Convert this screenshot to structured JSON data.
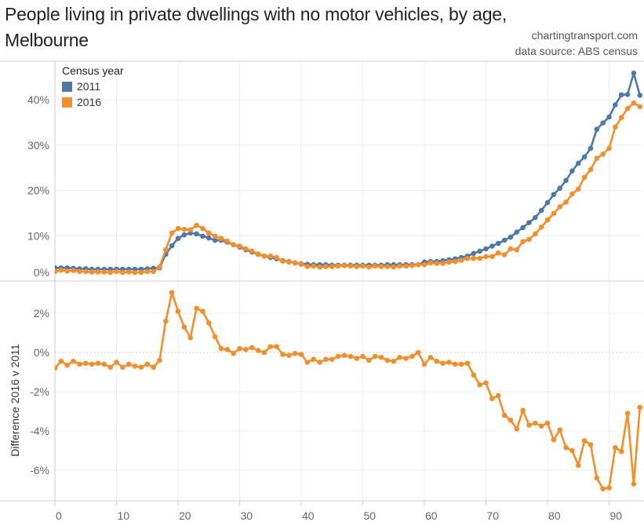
{
  "header": {
    "title_line1": "People living in private dwellings with no motor vehicles, by age,",
    "title_line2": "Melbourne",
    "credit": "chartingtransport.com",
    "source": "data source: ABS census"
  },
  "legend": {
    "title": "Census year",
    "items": [
      {
        "label": "2011",
        "color": "#4e79a7"
      },
      {
        "label": "2016",
        "color": "#f28e2b"
      }
    ]
  },
  "chart_data": [
    {
      "type": "line",
      "title": "People living in private dwellings with no motor vehicles, by age, Melbourne",
      "xlabel": "",
      "ylabel": "",
      "x": [
        0,
        1,
        2,
        3,
        4,
        5,
        6,
        7,
        8,
        9,
        10,
        11,
        12,
        13,
        14,
        15,
        16,
        17,
        18,
        19,
        20,
        21,
        22,
        23,
        24,
        25,
        26,
        27,
        28,
        29,
        30,
        31,
        32,
        33,
        34,
        35,
        36,
        37,
        38,
        39,
        40,
        41,
        42,
        43,
        44,
        45,
        46,
        47,
        48,
        49,
        50,
        51,
        52,
        53,
        54,
        55,
        56,
        57,
        58,
        59,
        60,
        61,
        62,
        63,
        64,
        65,
        66,
        67,
        68,
        69,
        70,
        71,
        72,
        73,
        74,
        75,
        76,
        77,
        78,
        79,
        80,
        81,
        82,
        83,
        84,
        85,
        86,
        87,
        88,
        89,
        90,
        91,
        92,
        93,
        94,
        95
      ],
      "xlim": [
        0,
        95
      ],
      "ylim": [
        0,
        48
      ],
      "yticks": [
        0,
        10,
        20,
        30,
        40
      ],
      "ytick_labels": [
        "0%",
        "10%",
        "20%",
        "30%",
        "40%"
      ],
      "grid": true,
      "legend": "top-left",
      "series": [
        {
          "name": "2011",
          "color": "#4e79a7",
          "values": [
            2.9,
            2.9,
            2.9,
            2.8,
            2.7,
            2.7,
            2.6,
            2.6,
            2.6,
            2.6,
            2.6,
            2.6,
            2.6,
            2.6,
            2.6,
            2.7,
            2.8,
            2.9,
            5.9,
            7.8,
            9.4,
            10.2,
            10.6,
            10.4,
            9.9,
            9.5,
            9.0,
            9.0,
            8.6,
            8.0,
            7.5,
            6.9,
            6.4,
            5.9,
            5.5,
            5.2,
            4.9,
            4.5,
            4.3,
            4.0,
            3.8,
            3.7,
            3.6,
            3.6,
            3.6,
            3.5,
            3.5,
            3.5,
            3.5,
            3.5,
            3.5,
            3.5,
            3.5,
            3.5,
            3.6,
            3.6,
            3.6,
            3.6,
            3.6,
            3.6,
            4.2,
            4.3,
            4.3,
            4.5,
            4.7,
            4.9,
            5.2,
            5.5,
            6.1,
            6.6,
            7.1,
            7.7,
            8.3,
            9.0,
            9.7,
            10.8,
            11.8,
            12.9,
            14.0,
            15.6,
            17.3,
            19.1,
            20.5,
            22.2,
            24.3,
            26.0,
            27.4,
            29.3,
            33.5,
            34.9,
            36.2,
            38.9,
            41.1,
            41.2,
            45.9,
            41.0
          ]
        },
        {
          "name": "2016",
          "color": "#f28e2b",
          "values": [
            2.1,
            2.4,
            2.2,
            2.3,
            2.1,
            2.1,
            2.0,
            2.0,
            2.0,
            1.9,
            2.1,
            1.9,
            2.0,
            1.9,
            1.9,
            2.1,
            2.1,
            3.1,
            6.9,
            10.6,
            11.6,
            11.4,
            11.3,
            12.3,
            11.6,
            10.6,
            9.9,
            9.4,
            8.8,
            8.0,
            7.7,
            7.1,
            6.6,
            6.0,
            5.5,
            5.5,
            5.2,
            4.4,
            4.2,
            4.0,
            3.7,
            3.2,
            3.3,
            3.1,
            3.2,
            3.2,
            3.3,
            3.4,
            3.3,
            3.2,
            3.3,
            3.1,
            3.3,
            3.2,
            3.2,
            3.1,
            3.3,
            3.3,
            3.4,
            3.6,
            3.6,
            4.0,
            3.9,
            3.9,
            4.2,
            4.3,
            4.6,
            5.0,
            5.0,
            5.0,
            5.4,
            5.4,
            6.2,
            5.8,
            7.1,
            6.9,
            8.7,
            9.2,
            10.4,
            11.9,
            13.5,
            14.9,
            16.4,
            17.4,
            19.2,
            20.3,
            22.9,
            24.6,
            27.1,
            28.0,
            29.3,
            34.0,
            36.1,
            38.1,
            39.3,
            38.5
          ]
        }
      ]
    },
    {
      "type": "line",
      "title": "",
      "xlabel": "",
      "ylabel": "Difference 2016 v 2011",
      "x": [
        0,
        1,
        2,
        3,
        4,
        5,
        6,
        7,
        8,
        9,
        10,
        11,
        12,
        13,
        14,
        15,
        16,
        17,
        18,
        19,
        20,
        21,
        22,
        23,
        24,
        25,
        26,
        27,
        28,
        29,
        30,
        31,
        32,
        33,
        34,
        35,
        36,
        37,
        38,
        39,
        40,
        41,
        42,
        43,
        44,
        45,
        46,
        47,
        48,
        49,
        50,
        51,
        52,
        53,
        54,
        55,
        56,
        57,
        58,
        59,
        60,
        61,
        62,
        63,
        64,
        65,
        66,
        67,
        68,
        69,
        70,
        71,
        72,
        73,
        74,
        75,
        76,
        77,
        78,
        79,
        80,
        81,
        82,
        83,
        84,
        85,
        86,
        87,
        88,
        89,
        90,
        91,
        92,
        93,
        94,
        95
      ],
      "xlim": [
        0,
        95
      ],
      "ylim": [
        -7.5,
        3.5
      ],
      "yticks": [
        -6,
        -4,
        -2,
        0,
        2
      ],
      "ytick_labels": [
        "-6%",
        "-4%",
        "-2%",
        "0%",
        "2%"
      ],
      "xticks": [
        0,
        10,
        20,
        30,
        40,
        50,
        60,
        70,
        80,
        90
      ],
      "xtick_labels": [
        "0",
        "10",
        "20",
        "30",
        "40",
        "50",
        "60",
        "70",
        "80",
        "90"
      ],
      "grid": true,
      "zero_line": "dotted",
      "series": [
        {
          "name": "2016",
          "color": "#f28e2b",
          "values": [
            -0.8,
            -0.45,
            -0.65,
            -0.45,
            -0.6,
            -0.55,
            -0.6,
            -0.55,
            -0.6,
            -0.75,
            -0.5,
            -0.75,
            -0.6,
            -0.7,
            -0.75,
            -0.6,
            -0.75,
            -0.4,
            1.6,
            3.05,
            2.1,
            1.3,
            0.75,
            2.25,
            2.1,
            1.5,
            0.8,
            0.2,
            0.15,
            -0.05,
            0.2,
            0.15,
            0.25,
            0.1,
            0.0,
            0.3,
            0.3,
            -0.1,
            -0.15,
            -0.05,
            -0.1,
            -0.5,
            -0.35,
            -0.5,
            -0.35,
            -0.35,
            -0.2,
            -0.15,
            -0.2,
            -0.3,
            -0.2,
            -0.4,
            -0.2,
            -0.25,
            -0.4,
            -0.45,
            -0.25,
            -0.3,
            -0.2,
            0.0,
            -0.6,
            -0.25,
            -0.45,
            -0.55,
            -0.5,
            -0.6,
            -0.6,
            -0.55,
            -1.15,
            -1.65,
            -1.55,
            -2.35,
            -2.2,
            -3.2,
            -3.45,
            -3.9,
            -2.95,
            -3.7,
            -3.6,
            -3.75,
            -3.6,
            -4.45,
            -3.95,
            -4.85,
            -5.0,
            -5.75,
            -4.5,
            -4.7,
            -6.4,
            -6.95,
            -6.9,
            -4.85,
            -5.05,
            -3.1,
            -6.7,
            -2.8
          ]
        }
      ]
    }
  ]
}
